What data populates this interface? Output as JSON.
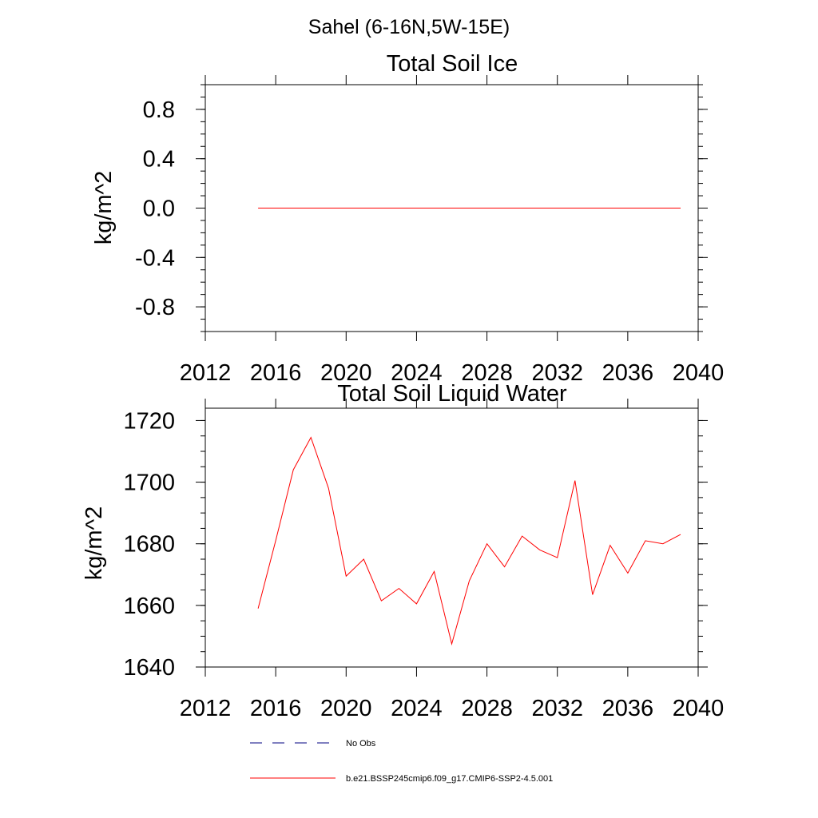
{
  "figure_title": "Sahel (6-16N,5W-15E)",
  "chart_data": [
    {
      "type": "line",
      "title": "Total Soil Ice",
      "xlabel": "",
      "ylabel": "kg/m^2",
      "xlim": [
        2012,
        2040
      ],
      "ylim": [
        -1.0,
        1.0
      ],
      "xticks": [
        2012,
        2016,
        2020,
        2024,
        2028,
        2032,
        2036,
        2040
      ],
      "yticks": [
        0.8,
        0.4,
        0.0,
        -0.4,
        -0.8
      ],
      "xtick_labels": [
        "2012",
        "2016",
        "2020",
        "2024",
        "2028",
        "2032",
        "2036",
        "2040"
      ],
      "ytick_labels": [
        "0.8",
        "0.4",
        "0.0",
        "-0.4",
        "-0.8"
      ],
      "series": [
        {
          "color": "#ff0000",
          "x": [
            2015,
            2016,
            2017,
            2018,
            2019,
            2020,
            2021,
            2022,
            2023,
            2024,
            2025,
            2026,
            2027,
            2028,
            2029,
            2030,
            2031,
            2032,
            2033,
            2034,
            2035,
            2036,
            2037,
            2038,
            2039
          ],
          "values": [
            0,
            0,
            0,
            0,
            0,
            0,
            0,
            0,
            0,
            0,
            0,
            0,
            0,
            0,
            0,
            0,
            0,
            0,
            0,
            0,
            0,
            0,
            0,
            0,
            0
          ]
        }
      ]
    },
    {
      "type": "line",
      "title": "Total Soil Liquid Water",
      "xlabel": "",
      "ylabel": "kg/m^2",
      "xlim": [
        2012,
        2040
      ],
      "ylim": [
        1640,
        1724
      ],
      "xticks": [
        2012,
        2016,
        2020,
        2024,
        2028,
        2032,
        2036,
        2040
      ],
      "yticks": [
        1720,
        1700,
        1680,
        1660,
        1640
      ],
      "xtick_labels": [
        "2012",
        "2016",
        "2020",
        "2024",
        "2028",
        "2032",
        "2036",
        "2040"
      ],
      "ytick_labels": [
        "1720",
        "1700",
        "1680",
        "1660",
        "1640"
      ],
      "series": [
        {
          "color": "#ff0000",
          "x": [
            2015,
            2016,
            2017,
            2018,
            2019,
            2020,
            2021,
            2022,
            2023,
            2024,
            2025,
            2026,
            2027,
            2028,
            2029,
            2030,
            2031,
            2032,
            2033,
            2034,
            2035,
            2036,
            2037,
            2038,
            2039
          ],
          "values": [
            1659,
            1681,
            1704,
            1714.5,
            1698,
            1669.5,
            1675,
            1661.5,
            1665.5,
            1660.5,
            1671,
            1647.5,
            1668,
            1680,
            1672.5,
            1682.5,
            1678,
            1675.5,
            1700.5,
            1663.5,
            1679.5,
            1670.5,
            1681,
            1680,
            1683
          ]
        }
      ]
    }
  ],
  "legend": [
    {
      "label": "No Obs",
      "style": "dashed",
      "color": "#000080"
    },
    {
      "label": "b.e21.BSSP245cmip6.f09_g17.CMIP6-SSP2-4.5.001",
      "style": "solid",
      "color": "#ff0000"
    }
  ]
}
